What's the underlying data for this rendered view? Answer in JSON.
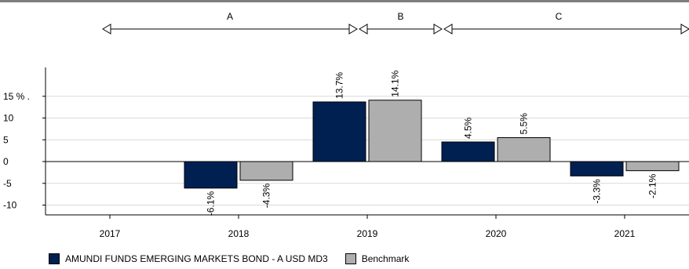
{
  "chart_data": {
    "type": "bar",
    "categories": [
      "2017",
      "2018",
      "2019",
      "2020",
      "2021"
    ],
    "series": [
      {
        "name": "AMUNDI FUNDS EMERGING MARKETS BOND - A USD MD3",
        "color": "#002052",
        "values": [
          null,
          -6.1,
          13.7,
          4.5,
          -3.3
        ],
        "labels": [
          "",
          "-6.1%",
          "13.7%",
          "4.5%",
          "-3.3%"
        ]
      },
      {
        "name": "Benchmark",
        "color": "#aeaeae",
        "values": [
          null,
          -4.3,
          14.1,
          5.5,
          -2.1
        ],
        "labels": [
          "",
          "-4.3%",
          "14.1%",
          "5.5%",
          "-2.1%"
        ]
      }
    ],
    "yticks": [
      {
        "value": 15,
        "label": "15 % ."
      },
      {
        "value": 10,
        "label": "10"
      },
      {
        "value": 5,
        "label": "5"
      },
      {
        "value": 0,
        "label": "0"
      },
      {
        "value": -5,
        "label": "-5"
      },
      {
        "value": -10,
        "label": "-10"
      }
    ],
    "ylim": [
      -12,
      21
    ],
    "grid": true,
    "legend_position": "bottom-left",
    "periods": [
      {
        "label": "A",
        "from": 2017,
        "to": 2019
      },
      {
        "label": "B",
        "from": 2019,
        "to": 2020
      },
      {
        "label": "C",
        "from": 2020,
        "to": 2022
      }
    ]
  }
}
